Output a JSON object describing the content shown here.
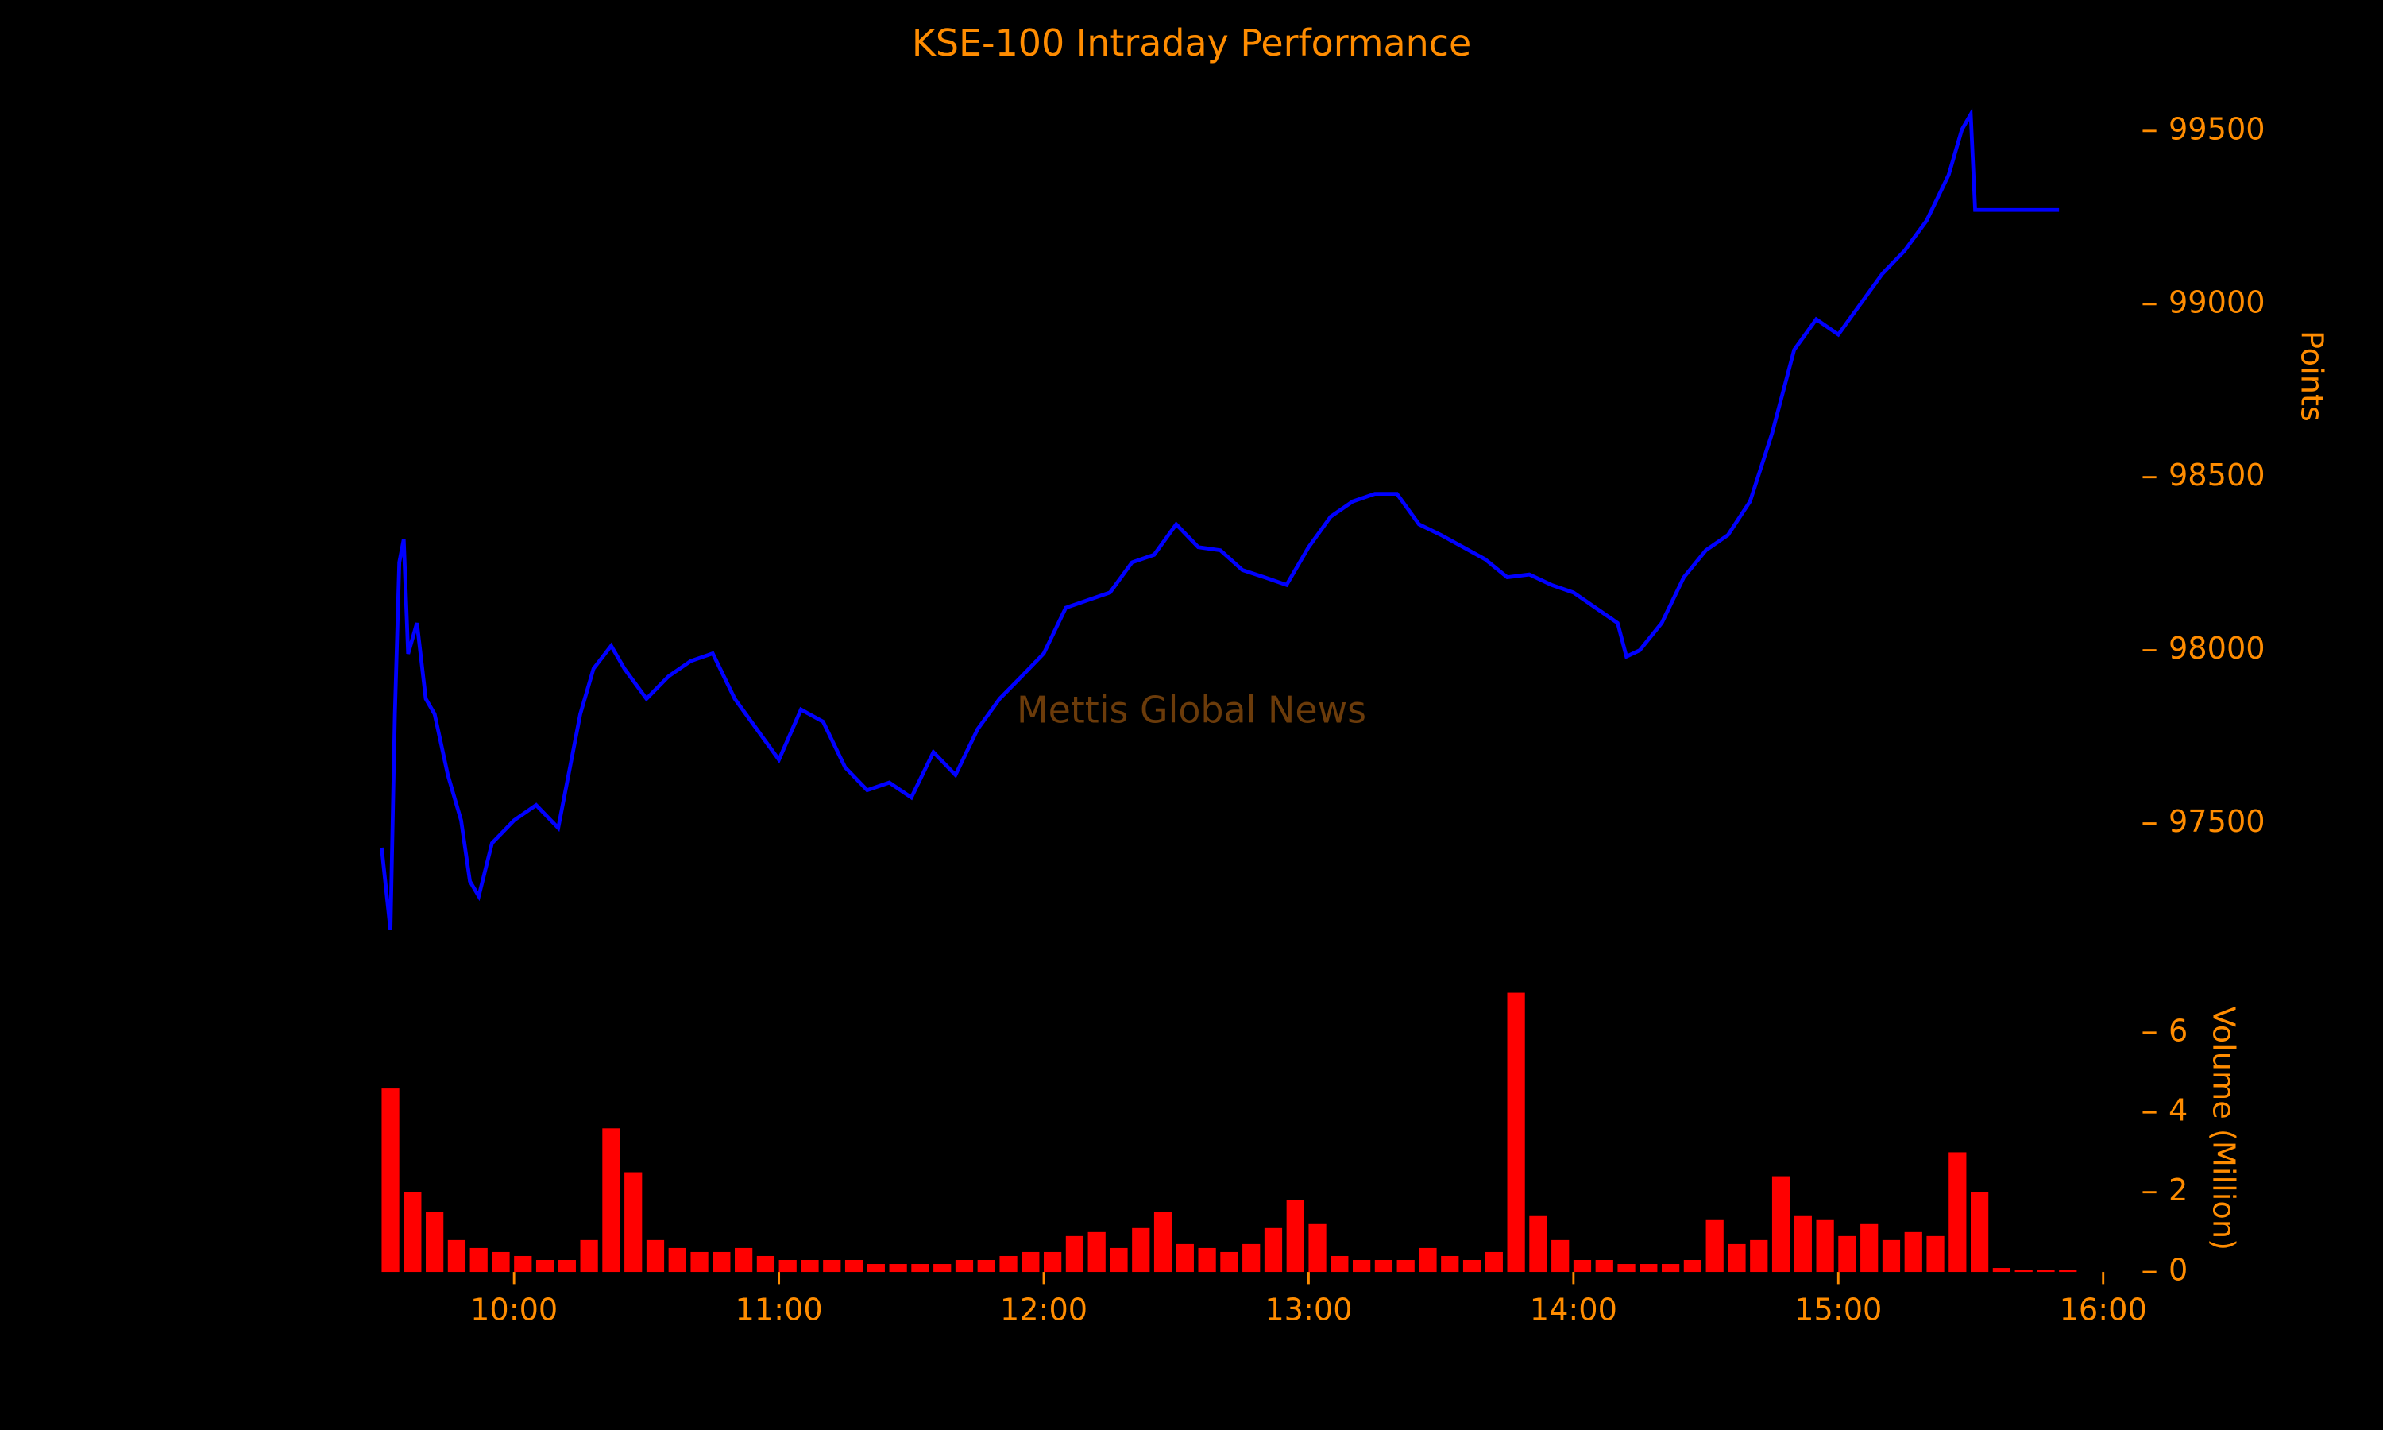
{
  "chart_data": [
    {
      "type": "line",
      "title": "KSE-100 Intraday Performance",
      "annotation": "Mettis Global News",
      "ylabel": "Points",
      "color": "#0000ff",
      "x": [
        "09:30",
        "09:32",
        "09:33",
        "09:34",
        "09:35",
        "09:36",
        "09:38",
        "09:40",
        "09:42",
        "09:45",
        "09:48",
        "09:50",
        "09:52",
        "09:55",
        "10:00",
        "10:05",
        "10:10",
        "10:13",
        "10:15",
        "10:18",
        "10:22",
        "10:25",
        "10:30",
        "10:35",
        "10:40",
        "10:45",
        "10:50",
        "10:55",
        "11:00",
        "11:05",
        "11:10",
        "11:15",
        "11:20",
        "11:25",
        "11:30",
        "11:35",
        "11:40",
        "11:45",
        "11:50",
        "11:55",
        "12:00",
        "12:05",
        "12:10",
        "12:15",
        "12:20",
        "12:25",
        "12:30",
        "12:35",
        "12:40",
        "12:45",
        "12:50",
        "12:55",
        "13:00",
        "13:05",
        "13:10",
        "13:15",
        "13:20",
        "13:25",
        "13:30",
        "13:35",
        "13:40",
        "13:45",
        "13:50",
        "13:55",
        "14:00",
        "14:05",
        "14:10",
        "14:12",
        "14:15",
        "14:20",
        "14:25",
        "14:30",
        "14:35",
        "14:40",
        "14:45",
        "14:50",
        "14:55",
        "15:00",
        "15:05",
        "15:10",
        "15:15",
        "15:20",
        "15:25",
        "15:28",
        "15:30",
        "15:31",
        "15:50"
      ],
      "values": [
        97430,
        97193,
        97816,
        98254,
        98320,
        97990,
        98079,
        97860,
        97816,
        97640,
        97509,
        97333,
        97290,
        97443,
        97509,
        97553,
        97487,
        97684,
        97816,
        97947,
        98013,
        97947,
        97860,
        97925,
        97969,
        97991,
        97860,
        97772,
        97684,
        97829,
        97794,
        97662,
        97596,
        97618,
        97575,
        97706,
        97640,
        97772,
        97860,
        97925,
        97991,
        98123,
        98145,
        98167,
        98254,
        98276,
        98364,
        98298,
        98289,
        98232,
        98211,
        98189,
        98298,
        98386,
        98430,
        98452,
        98452,
        98364,
        98333,
        98298,
        98263,
        98211,
        98219,
        98189,
        98167,
        98123,
        98079,
        97982,
        98000,
        98079,
        98211,
        98289,
        98333,
        98430,
        98627,
        98868,
        98956,
        98912,
        99000,
        99088,
        99154,
        99241,
        99373,
        99504,
        99548,
        99272,
        99272
      ],
      "xlim": [
        "09:30",
        "16:00"
      ],
      "ylim": [
        97100,
        99650
      ],
      "yticks": [
        97500,
        98000,
        98500,
        99000,
        99500
      ]
    },
    {
      "type": "bar",
      "ylabel": "Volume (Million)",
      "color": "#ff0000",
      "x": [
        "09:30",
        "09:35",
        "09:40",
        "09:45",
        "09:50",
        "09:55",
        "10:00",
        "10:05",
        "10:10",
        "10:15",
        "10:20",
        "10:25",
        "10:30",
        "10:35",
        "10:40",
        "10:45",
        "10:50",
        "10:55",
        "11:00",
        "11:05",
        "11:10",
        "11:15",
        "11:20",
        "11:25",
        "11:30",
        "11:35",
        "11:40",
        "11:45",
        "11:50",
        "11:55",
        "12:00",
        "12:05",
        "12:10",
        "12:15",
        "12:20",
        "12:25",
        "12:30",
        "12:35",
        "12:40",
        "12:45",
        "12:50",
        "12:55",
        "13:00",
        "13:05",
        "13:10",
        "13:15",
        "13:20",
        "13:25",
        "13:30",
        "13:35",
        "13:40",
        "13:45",
        "13:50",
        "13:55",
        "14:00",
        "14:05",
        "14:10",
        "14:15",
        "14:20",
        "14:25",
        "14:30",
        "14:35",
        "14:40",
        "14:45",
        "14:50",
        "14:55",
        "15:00",
        "15:05",
        "15:10",
        "15:15",
        "15:20",
        "15:25",
        "15:30",
        "15:35",
        "15:40",
        "15:45",
        "15:50"
      ],
      "values": [
        4.6,
        2.0,
        1.5,
        0.8,
        0.6,
        0.5,
        0.4,
        0.3,
        0.3,
        0.8,
        3.6,
        2.5,
        0.8,
        0.6,
        0.5,
        0.5,
        0.6,
        0.4,
        0.3,
        0.3,
        0.3,
        0.3,
        0.2,
        0.2,
        0.2,
        0.2,
        0.3,
        0.3,
        0.4,
        0.5,
        0.5,
        0.9,
        1.0,
        0.6,
        1.1,
        1.5,
        0.7,
        0.6,
        0.5,
        0.7,
        1.1,
        1.8,
        1.2,
        0.4,
        0.3,
        0.3,
        0.3,
        0.6,
        0.4,
        0.3,
        0.5,
        7.0,
        1.4,
        0.8,
        0.3,
        0.3,
        0.2,
        0.2,
        0.2,
        0.3,
        1.3,
        0.7,
        0.8,
        2.4,
        1.4,
        1.3,
        0.9,
        1.2,
        0.8,
        1.0,
        0.9,
        3.0,
        2.0,
        0.1,
        0.05,
        0.05,
        0.05
      ],
      "xlim": [
        "09:30",
        "16:00"
      ],
      "ylim": [
        0,
        7.2
      ],
      "yticks": [
        0,
        2,
        4,
        6
      ],
      "xticks": [
        "10:00",
        "11:00",
        "12:00",
        "13:00",
        "14:00",
        "15:00",
        "16:00"
      ]
    }
  ]
}
